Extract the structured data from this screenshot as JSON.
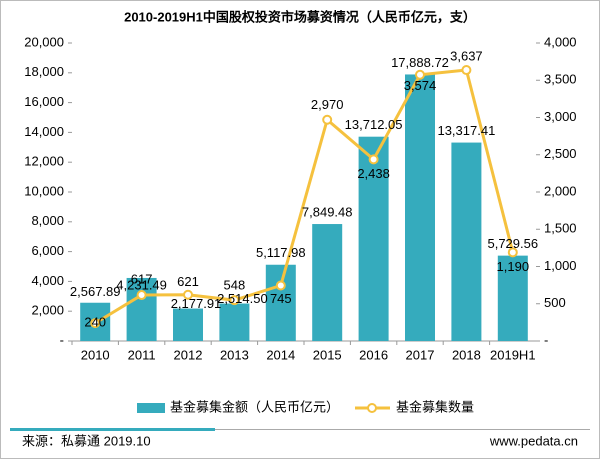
{
  "chart_data": {
    "type": "bar_line",
    "title": "2010-2019H1中国股权投资市场募资情况（人民币亿元，支）",
    "categories": [
      "2010",
      "2011",
      "2012",
      "2013",
      "2014",
      "2015",
      "2016",
      "2017",
      "2018",
      "2019H1"
    ],
    "series": [
      {
        "name": "基金募集金额（人民币亿元）",
        "color": "#35abbd",
        "type": "bar",
        "values": [
          2567.89,
          4231.49,
          2177.91,
          2514.5,
          5117.98,
          7849.48,
          13712.05,
          17888.72,
          13317.41,
          5729.56
        ],
        "value_labels": [
          "2,567.89",
          "4,231.49",
          "2,177.91",
          "2,514.50",
          "5,117.98",
          "7,849.48",
          "13,712.05",
          "17,888.72",
          "13,317.41",
          "5,729.56"
        ]
      },
      {
        "name": "基金募集数量",
        "color": "#f5c13e",
        "type": "line",
        "axis": "y2",
        "values": [
          240,
          617,
          621,
          548,
          745,
          2970,
          2438,
          3574,
          3637,
          1190
        ],
        "value_labels": [
          "240",
          "617",
          "621",
          "548",
          "745",
          "2,970",
          "2,438",
          "3,574",
          "3,637",
          "1,190"
        ]
      }
    ],
    "ylim": [
      0,
      20000
    ],
    "yticks": [
      {
        "value": 0,
        "label": "-"
      },
      {
        "value": 2000,
        "label": "2,000"
      },
      {
        "value": 4000,
        "label": "4,000"
      },
      {
        "value": 6000,
        "label": "6,000"
      },
      {
        "value": 8000,
        "label": "8,000"
      },
      {
        "value": 10000,
        "label": "10,000"
      },
      {
        "value": 12000,
        "label": "12,000"
      },
      {
        "value": 14000,
        "label": "14,000"
      },
      {
        "value": 16000,
        "label": "16,000"
      },
      {
        "value": 18000,
        "label": "18,000"
      },
      {
        "value": 20000,
        "label": "20,000"
      }
    ],
    "y2lim": [
      0,
      4000
    ],
    "y2ticks": [
      {
        "value": 0,
        "label": "-"
      },
      500,
      {
        "value": 1000,
        "label": "1,000"
      },
      {
        "value": 1500,
        "label": "1,500"
      },
      {
        "value": 2000,
        "label": "2,000"
      },
      {
        "value": 2500,
        "label": "2,500"
      },
      {
        "value": 3000,
        "label": "3,000"
      },
      {
        "value": 3500,
        "label": "3,500"
      },
      {
        "value": 4000,
        "label": "4,000"
      }
    ],
    "legend": "bottom",
    "source": "来源：私募通 2019.10",
    "website": "www.pedata.cn"
  }
}
